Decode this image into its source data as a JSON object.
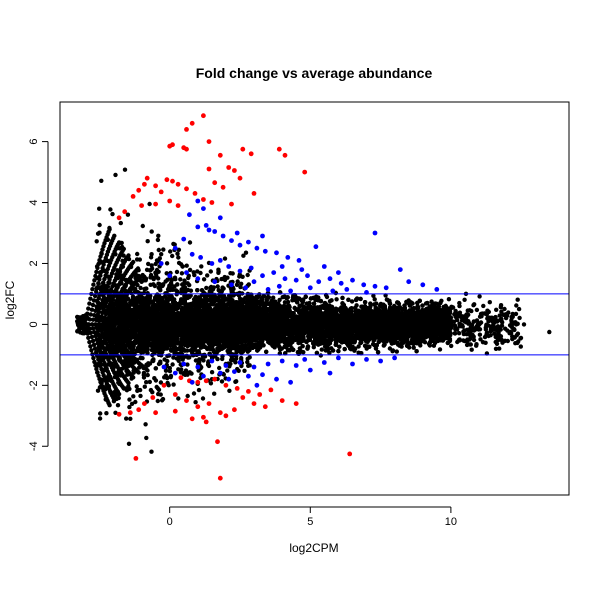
{
  "chart_data": {
    "type": "scatter",
    "title": "Fold change vs average abundance",
    "xlabel": "log2CPM",
    "ylabel": "log2FC",
    "xlim": [
      -3.9,
      14.2
    ],
    "ylim": [
      -5.6,
      7.3
    ],
    "xticks": [
      0,
      5,
      10
    ],
    "yticks": [
      -4,
      -2,
      0,
      2,
      4,
      6
    ],
    "hlines": [
      {
        "y": 1,
        "color": "#0000ff"
      },
      {
        "y": -1,
        "color": "#0000ff"
      }
    ],
    "colors": {
      "not_significant": "#000000",
      "significant": "#0000ff",
      "highly_significant": "#ff0000"
    },
    "series": [
      {
        "color": "#ff0000",
        "points": [
          [
            1.2,
            6.85
          ],
          [
            0.8,
            6.6
          ],
          [
            0.6,
            6.4
          ],
          [
            0.1,
            5.9
          ],
          [
            0.0,
            5.85
          ],
          [
            0.5,
            5.8
          ],
          [
            0.6,
            5.75
          ],
          [
            1.4,
            6.0
          ],
          [
            1.8,
            5.55
          ],
          [
            2.6,
            5.75
          ],
          [
            2.9,
            5.6
          ],
          [
            3.9,
            5.75
          ],
          [
            4.1,
            5.55
          ],
          [
            4.8,
            5.0
          ],
          [
            1.4,
            5.1
          ],
          [
            2.1,
            5.15
          ],
          [
            2.3,
            5.05
          ],
          [
            2.5,
            4.8
          ],
          [
            3.0,
            4.3
          ],
          [
            1.6,
            4.65
          ],
          [
            -1.3,
            4.2
          ],
          [
            -1.1,
            4.4
          ],
          [
            -0.9,
            4.6
          ],
          [
            -0.8,
            4.8
          ],
          [
            -0.5,
            4.55
          ],
          [
            -0.3,
            4.35
          ],
          [
            -0.1,
            4.75
          ],
          [
            0.1,
            4.7
          ],
          [
            0.3,
            4.6
          ],
          [
            0.6,
            4.45
          ],
          [
            0.9,
            4.3
          ],
          [
            1.2,
            4.1
          ],
          [
            1.5,
            4.0
          ],
          [
            1.9,
            4.5
          ],
          [
            2.2,
            3.95
          ],
          [
            -1.6,
            3.7
          ],
          [
            -1.8,
            3.5
          ],
          [
            -1.0,
            3.9
          ],
          [
            -0.5,
            3.95
          ],
          [
            0.0,
            4.05
          ],
          [
            0.3,
            3.9
          ],
          [
            0.4,
            -1.75
          ],
          [
            0.7,
            -1.85
          ],
          [
            1.0,
            -1.9
          ],
          [
            1.3,
            -1.85
          ],
          [
            1.6,
            -1.8
          ],
          [
            2.0,
            -2.0
          ],
          [
            2.4,
            -2.1
          ],
          [
            2.8,
            -2.2
          ],
          [
            3.2,
            -2.3
          ],
          [
            3.6,
            -2.15
          ],
          [
            4.0,
            -2.5
          ],
          [
            -0.2,
            -2.0
          ],
          [
            0.2,
            -2.3
          ],
          [
            0.6,
            -2.5
          ],
          [
            1.0,
            -2.7
          ],
          [
            1.4,
            -2.6
          ],
          [
            1.8,
            -2.9
          ],
          [
            2.3,
            -2.8
          ],
          [
            2.6,
            -2.4
          ],
          [
            3.0,
            -2.6
          ],
          [
            3.4,
            -2.7
          ],
          [
            -0.6,
            -2.4
          ],
          [
            -0.9,
            -2.6
          ],
          [
            -0.5,
            -2.9
          ],
          [
            -1.1,
            -2.8
          ],
          [
            -1.4,
            -2.9
          ],
          [
            -1.8,
            -2.95
          ],
          [
            0.2,
            -2.85
          ],
          [
            0.8,
            -3.1
          ],
          [
            1.2,
            -3.05
          ],
          [
            1.3,
            -3.2
          ],
          [
            2.0,
            -3.0
          ],
          [
            4.5,
            -2.6
          ],
          [
            1.7,
            -3.85
          ],
          [
            -1.2,
            -4.4
          ],
          [
            6.4,
            -4.25
          ],
          [
            1.8,
            -5.05
          ]
        ]
      },
      {
        "color": "#0000ff",
        "points": [
          [
            1.0,
            4.05
          ],
          [
            1.2,
            3.8
          ],
          [
            0.7,
            3.6
          ],
          [
            1.8,
            3.5
          ],
          [
            1.3,
            3.25
          ],
          [
            1.4,
            3.1
          ],
          [
            1.0,
            3.2
          ],
          [
            1.6,
            3.05
          ],
          [
            1.9,
            2.9
          ],
          [
            2.2,
            2.75
          ],
          [
            2.5,
            2.6
          ],
          [
            2.8,
            2.7
          ],
          [
            3.1,
            2.5
          ],
          [
            3.4,
            2.4
          ],
          [
            3.8,
            2.35
          ],
          [
            4.2,
            2.2
          ],
          [
            4.6,
            2.1
          ],
          [
            5.2,
            2.55
          ],
          [
            7.3,
            3.0
          ],
          [
            3.3,
            2.9
          ],
          [
            2.4,
            3.0
          ],
          [
            0.5,
            2.8
          ],
          [
            0.2,
            2.5
          ],
          [
            0.8,
            2.3
          ],
          [
            1.1,
            2.2
          ],
          [
            1.5,
            2.0
          ],
          [
            1.8,
            2.1
          ],
          [
            2.1,
            1.9
          ],
          [
            2.5,
            1.75
          ],
          [
            2.9,
            1.85
          ],
          [
            3.3,
            1.6
          ],
          [
            3.7,
            1.7
          ],
          [
            4.1,
            1.5
          ],
          [
            4.5,
            1.45
          ],
          [
            4.9,
            1.6
          ],
          [
            5.3,
            1.4
          ],
          [
            5.7,
            1.5
          ],
          [
            6.1,
            1.35
          ],
          [
            6.5,
            1.45
          ],
          [
            6.9,
            1.3
          ],
          [
            7.3,
            1.25
          ],
          [
            7.7,
            1.2
          ],
          [
            8.2,
            1.8
          ],
          [
            8.5,
            1.4
          ],
          [
            9.0,
            1.3
          ],
          [
            9.5,
            1.15
          ],
          [
            6.0,
            1.7
          ],
          [
            5.5,
            1.9
          ],
          [
            4.7,
            1.8
          ],
          [
            3.0,
            1.4
          ],
          [
            2.2,
            1.3
          ],
          [
            1.6,
            1.4
          ],
          [
            1.0,
            1.5
          ],
          [
            0.6,
            1.7
          ],
          [
            2.7,
            1.2
          ],
          [
            3.5,
            1.15
          ],
          [
            4.3,
            1.1
          ],
          [
            5.0,
            1.2
          ],
          [
            5.8,
            1.1
          ],
          [
            6.3,
            1.15
          ],
          [
            7.0,
            1.05
          ],
          [
            -0.3,
            2.0
          ],
          [
            0.0,
            1.6
          ],
          [
            3.9,
            1.25
          ],
          [
            4.0,
            1.9
          ],
          [
            0.5,
            -1.3
          ],
          [
            1.0,
            -1.4
          ],
          [
            1.5,
            -1.2
          ],
          [
            2.0,
            -1.35
          ],
          [
            2.5,
            -1.25
          ],
          [
            3.0,
            -1.4
          ],
          [
            3.5,
            -1.3
          ],
          [
            4.0,
            -1.2
          ],
          [
            4.5,
            -1.35
          ],
          [
            5.0,
            -1.5
          ],
          [
            5.5,
            -1.25
          ],
          [
            6.0,
            -1.1
          ],
          [
            6.5,
            -1.3
          ],
          [
            7.0,
            -1.15
          ],
          [
            7.5,
            -1.2
          ],
          [
            8.0,
            -1.1
          ],
          [
            1.2,
            -1.7
          ],
          [
            1.8,
            -1.6
          ],
          [
            2.3,
            -1.55
          ],
          [
            2.8,
            -1.7
          ],
          [
            3.3,
            -1.65
          ],
          [
            3.8,
            -1.8
          ],
          [
            4.3,
            -1.9
          ],
          [
            0.2,
            -1.6
          ],
          [
            -0.2,
            -1.4
          ],
          [
            0.8,
            -1.9
          ],
          [
            4.8,
            -1.15
          ],
          [
            5.7,
            -1.6
          ],
          [
            3.1,
            -2.0
          ],
          [
            2.1,
            -1.8
          ]
        ]
      }
    ]
  }
}
